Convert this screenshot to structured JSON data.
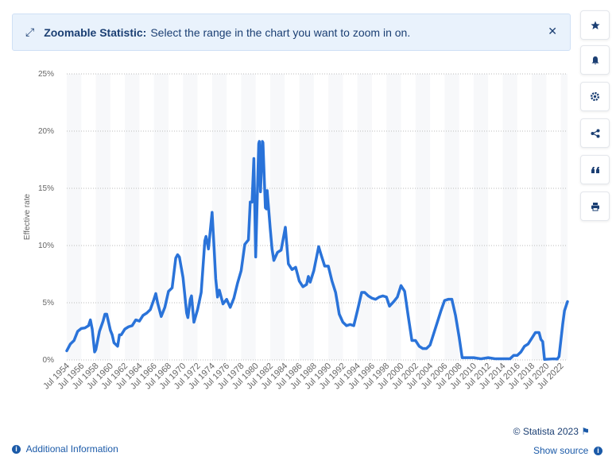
{
  "banner": {
    "label": "Zoomable Statistic:",
    "text": "Select the range in the chart you want to zoom in on."
  },
  "chart_data": {
    "type": "line",
    "y_label": "Effective rate",
    "color": "#2a73d9",
    "grid": true,
    "x": [
      "1954-07",
      "1955-01",
      "1955-07",
      "1956-01",
      "1956-07",
      "1957-01",
      "1957-07",
      "1957-10",
      "1958-01",
      "1958-05",
      "1958-07",
      "1959-01",
      "1959-07",
      "1959-10",
      "1960-01",
      "1960-07",
      "1960-10",
      "1961-01",
      "1961-07",
      "1961-10",
      "1962-01",
      "1962-07",
      "1963-01",
      "1963-07",
      "1964-01",
      "1964-07",
      "1965-01",
      "1965-07",
      "1966-01",
      "1966-07",
      "1966-10",
      "1967-01",
      "1967-07",
      "1968-01",
      "1968-07",
      "1969-01",
      "1969-07",
      "1969-10",
      "1970-01",
      "1970-07",
      "1971-01",
      "1971-03",
      "1971-07",
      "1971-09",
      "1972-01",
      "1972-07",
      "1973-01",
      "1973-07",
      "1973-09",
      "1974-01",
      "1974-07",
      "1974-10",
      "1975-01",
      "1975-04",
      "1975-07",
      "1976-01",
      "1976-07",
      "1977-01",
      "1977-07",
      "1978-01",
      "1978-07",
      "1979-01",
      "1979-07",
      "1979-10",
      "1980-01",
      "1980-04",
      "1980-07",
      "1980-12",
      "1981-01",
      "1981-03",
      "1981-06",
      "1981-07",
      "1981-11",
      "1982-01",
      "1982-02",
      "1982-07",
      "1982-10",
      "1983-01",
      "1983-07",
      "1984-01",
      "1984-08",
      "1985-01",
      "1985-07",
      "1986-01",
      "1986-07",
      "1987-01",
      "1987-07",
      "1987-10",
      "1988-01",
      "1988-07",
      "1989-03",
      "1989-07",
      "1990-01",
      "1990-07",
      "1991-01",
      "1991-07",
      "1992-01",
      "1992-07",
      "1993-01",
      "1993-07",
      "1994-01",
      "1994-07",
      "1995-02",
      "1995-07",
      "1996-01",
      "1996-07",
      "1997-01",
      "1997-07",
      "1998-01",
      "1998-07",
      "1998-12",
      "1999-07",
      "2000-01",
      "2000-07",
      "2001-01",
      "2001-07",
      "2002-01",
      "2002-07",
      "2003-01",
      "2003-07",
      "2004-01",
      "2004-07",
      "2005-01",
      "2005-07",
      "2006-01",
      "2006-07",
      "2007-01",
      "2007-07",
      "2008-01",
      "2008-07",
      "2008-12",
      "2009-07",
      "2010-07",
      "2011-07",
      "2012-07",
      "2013-07",
      "2014-07",
      "2015-07",
      "2016-01",
      "2016-07",
      "2017-01",
      "2017-07",
      "2018-01",
      "2018-07",
      "2019-01",
      "2019-07",
      "2019-10",
      "2020-01",
      "2020-04",
      "2021-07",
      "2022-01",
      "2022-04",
      "2022-07",
      "2022-10",
      "2023-01",
      "2023-06"
    ],
    "values": [
      0.8,
      1.4,
      1.7,
      2.5,
      2.75,
      2.8,
      3.0,
      3.5,
      2.7,
      0.7,
      0.9,
      2.5,
      3.4,
      4.0,
      4.0,
      2.6,
      2.2,
      1.5,
      1.2,
      2.2,
      2.2,
      2.7,
      2.9,
      3.0,
      3.5,
      3.4,
      3.9,
      4.1,
      4.4,
      5.3,
      5.8,
      5.0,
      3.8,
      4.6,
      6.0,
      6.3,
      8.9,
      9.2,
      9.0,
      7.2,
      4.1,
      3.7,
      5.3,
      5.6,
      3.3,
      4.4,
      5.9,
      10.4,
      10.8,
      9.7,
      12.9,
      10.1,
      7.1,
      5.5,
      6.1,
      4.9,
      5.3,
      4.6,
      5.4,
      6.7,
      7.8,
      10.1,
      10.5,
      13.8,
      13.8,
      17.6,
      9.0,
      18.9,
      19.1,
      14.7,
      19.1,
      19.0,
      13.3,
      13.2,
      14.8,
      11.5,
      9.7,
      8.7,
      9.4,
      9.6,
      11.6,
      8.4,
      7.9,
      8.1,
      6.9,
      6.4,
      6.6,
      7.3,
      6.8,
      7.8,
      9.9,
      9.2,
      8.2,
      8.2,
      6.9,
      5.9,
      4.0,
      3.3,
      3.0,
      3.1,
      3.0,
      4.3,
      5.9,
      5.9,
      5.6,
      5.4,
      5.3,
      5.5,
      5.6,
      5.5,
      4.7,
      5.1,
      5.5,
      6.5,
      6.0,
      3.8,
      1.7,
      1.7,
      1.2,
      1.0,
      1.0,
      1.3,
      2.3,
      3.3,
      4.3,
      5.2,
      5.3,
      5.3,
      3.9,
      2.0,
      0.2,
      0.2,
      0.2,
      0.1,
      0.2,
      0.1,
      0.1,
      0.1,
      0.4,
      0.4,
      0.7,
      1.2,
      1.4,
      1.9,
      2.4,
      2.4,
      1.8,
      1.6,
      0.05,
      0.1,
      0.08,
      0.3,
      1.7,
      3.1,
      4.3,
      5.1
    ],
    "xlim": [
      "1954-07",
      "2023-06"
    ],
    "xticks": [
      {
        "value": "1954-07",
        "label": "Jul 1954"
      },
      {
        "value": "1956-07",
        "label": "Jul 1956"
      },
      {
        "value": "1958-07",
        "label": "Jul 1958"
      },
      {
        "value": "1960-07",
        "label": "Jul 1960"
      },
      {
        "value": "1962-07",
        "label": "Jul 1962"
      },
      {
        "value": "1964-07",
        "label": "Jul 1964"
      },
      {
        "value": "1966-07",
        "label": "Jul 1966"
      },
      {
        "value": "1968-07",
        "label": "Jul 1968"
      },
      {
        "value": "1970-07",
        "label": "Jul 1970"
      },
      {
        "value": "1972-07",
        "label": "Jul 1972"
      },
      {
        "value": "1974-07",
        "label": "Jul 1974"
      },
      {
        "value": "1976-07",
        "label": "Jul 1976"
      },
      {
        "value": "1978-07",
        "label": "Jul 1978"
      },
      {
        "value": "1980-07",
        "label": "Jul 1980"
      },
      {
        "value": "1982-07",
        "label": "Jul 1982"
      },
      {
        "value": "1984-07",
        "label": "Jul 1984"
      },
      {
        "value": "1986-07",
        "label": "Jul 1986"
      },
      {
        "value": "1988-07",
        "label": "Jul 1988"
      },
      {
        "value": "1990-07",
        "label": "Jul 1990"
      },
      {
        "value": "1992-07",
        "label": "Jul 1992"
      },
      {
        "value": "1994-07",
        "label": "Jul 1994"
      },
      {
        "value": "1996-07",
        "label": "Jul 1996"
      },
      {
        "value": "1998-07",
        "label": "Jul 1998"
      },
      {
        "value": "2000-07",
        "label": "Jul 2000"
      },
      {
        "value": "2002-07",
        "label": "Jul 2002"
      },
      {
        "value": "2004-07",
        "label": "Jul 2004"
      },
      {
        "value": "2006-07",
        "label": "Jul 2006"
      },
      {
        "value": "2008-07",
        "label": "Jul 2008"
      },
      {
        "value": "2010-07",
        "label": "Jul 2010"
      },
      {
        "value": "2012-07",
        "label": "Jul 2012"
      },
      {
        "value": "2014-07",
        "label": "Jul 2014"
      },
      {
        "value": "2016-07",
        "label": "Jul 2016"
      },
      {
        "value": "2018-07",
        "label": "Jul 2018"
      },
      {
        "value": "2020-07",
        "label": "Jul 2020"
      },
      {
        "value": "2022-07",
        "label": "Jul 2022"
      }
    ],
    "ylim": [
      0,
      25
    ],
    "yticks": [
      {
        "value": 0,
        "label": "0%"
      },
      {
        "value": 5,
        "label": "5%"
      },
      {
        "value": 10,
        "label": "10%"
      },
      {
        "value": 15,
        "label": "15%"
      },
      {
        "value": 20,
        "label": "20%"
      },
      {
        "value": 25,
        "label": "25%"
      }
    ]
  },
  "footer": {
    "copyright": "© Statista 2023",
    "additional": "Additional Information",
    "source": "Show source"
  }
}
